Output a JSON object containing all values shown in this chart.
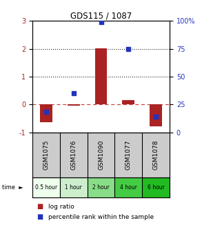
{
  "title": "GDS115 / 1087",
  "samples": [
    "GSM1075",
    "GSM1076",
    "GSM1090",
    "GSM1077",
    "GSM1078"
  ],
  "time_labels": [
    "0.5 hour",
    "1 hour",
    "2 hour",
    "4 hour",
    "6 hour"
  ],
  "log_ratios": [
    -0.65,
    -0.05,
    2.02,
    0.15,
    -0.78
  ],
  "percentiles": [
    18,
    35,
    99,
    75,
    14
  ],
  "ylim_left": [
    -1,
    3
  ],
  "ylim_right": [
    0,
    100
  ],
  "yticks_left": [
    -1,
    0,
    1,
    2,
    3
  ],
  "yticks_right": [
    0,
    25,
    50,
    75,
    100
  ],
  "ytick_labels_right": [
    "0",
    "25",
    "50",
    "75",
    "100%"
  ],
  "bar_color": "#aa2222",
  "point_color": "#2233bb",
  "zero_line_color": "#cc4444",
  "dotted_line_color": "#222222",
  "bar_width": 0.45,
  "point_size": 25,
  "legend_log_ratio": "log ratio",
  "legend_percentile": "percentile rank within the sample",
  "time_colors": [
    "#eeffee",
    "#cceecc",
    "#88dd88",
    "#44cc44",
    "#22bb22"
  ],
  "sample_bg": "#cccccc"
}
